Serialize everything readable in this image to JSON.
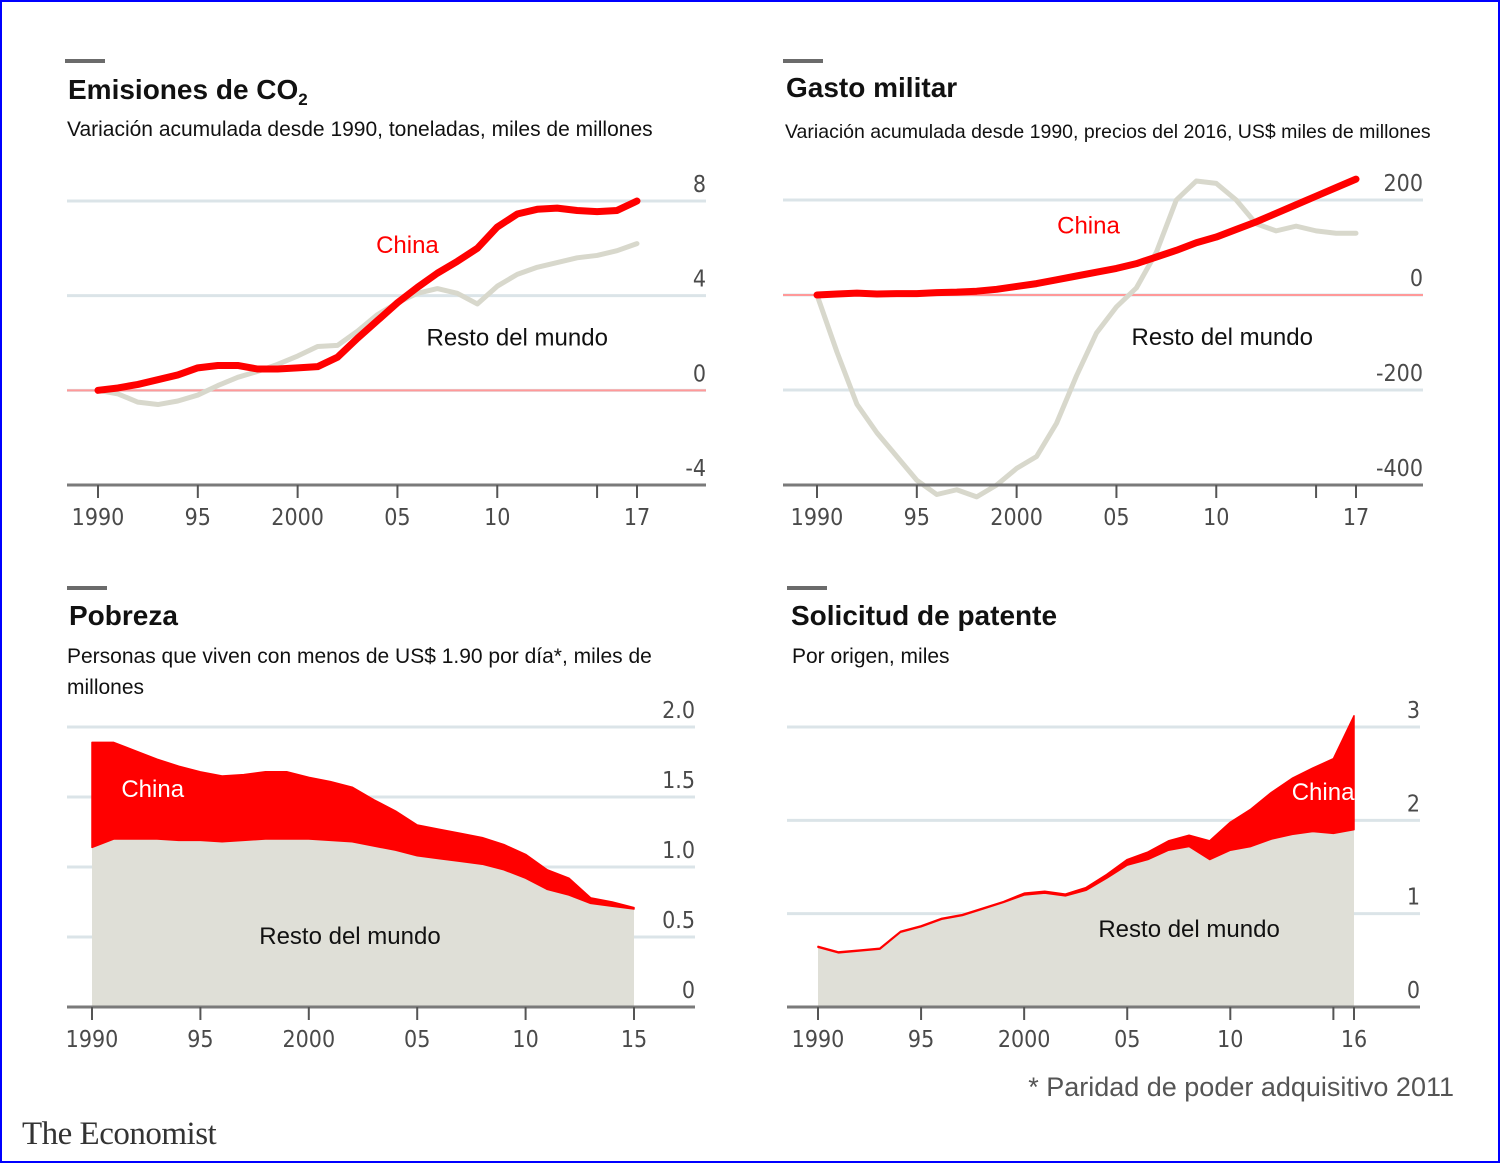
{
  "colors": {
    "china": "#ff0000",
    "rest": "#d8d8cc",
    "rest_area": "#dfdfd7",
    "grid": "#dbe4e8",
    "zero_line": "#ff9999",
    "axis": "#7a7a7a",
    "frame": "#0000ff"
  },
  "footer": {
    "footnote": "* Paridad de poder adquisitivo 2011",
    "brand": "The Economist"
  },
  "chart_data": [
    {
      "id": "co2",
      "type": "line",
      "title": "Emisiones de CO",
      "title_sub": "2",
      "subtitle": "Variación acumulada desde 1990, toneladas, miles de millones",
      "xlabel": "",
      "ylabel": "",
      "x_range": [
        1990,
        2017
      ],
      "ylim": [
        -4,
        8
      ],
      "y_ticks": [
        8,
        4,
        0,
        -4
      ],
      "y_tick_labels": [
        "8",
        "4",
        "0",
        "-4"
      ],
      "x_ticks": [
        1990,
        1995,
        2000,
        2005,
        2010,
        2015,
        2017
      ],
      "x_tick_labels": [
        "1990",
        "95",
        "2000",
        "05",
        "10",
        "",
        "17"
      ],
      "grid": true,
      "zero_line": 0,
      "x": [
        1990,
        1991,
        1992,
        1993,
        1994,
        1995,
        1996,
        1997,
        1998,
        1999,
        2000,
        2001,
        2002,
        2003,
        2004,
        2005,
        2006,
        2007,
        2008,
        2009,
        2010,
        2011,
        2012,
        2013,
        2014,
        2015,
        2016,
        2017
      ],
      "series": [
        {
          "name": "Resto del mundo",
          "key": "rest",
          "values": [
            0,
            -0.15,
            -0.5,
            -0.6,
            -0.45,
            -0.2,
            0.2,
            0.55,
            0.8,
            1.1,
            1.45,
            1.85,
            1.9,
            2.5,
            3.2,
            3.7,
            4.1,
            4.3,
            4.1,
            3.65,
            4.4,
            4.9,
            5.2,
            5.4,
            5.6,
            5.7,
            5.9,
            6.2
          ]
        },
        {
          "name": "China",
          "key": "china",
          "values": [
            0,
            0.1,
            0.25,
            0.45,
            0.65,
            0.95,
            1.05,
            1.05,
            0.9,
            0.9,
            0.95,
            1.0,
            1.4,
            2.2,
            2.95,
            3.7,
            4.35,
            4.95,
            5.45,
            6.0,
            6.9,
            7.45,
            7.65,
            7.7,
            7.6,
            7.55,
            7.6,
            8.0
          ]
        }
      ],
      "labels": [
        {
          "text": "China",
          "key": "china",
          "x": 2005.5,
          "y": 5.8
        },
        {
          "text": "Resto del mundo",
          "key": "black",
          "x": 2011,
          "y": 1.9
        }
      ]
    },
    {
      "id": "military",
      "type": "line",
      "title": "Gasto militar",
      "subtitle": "Variación acumulada desde 1990, precios del 2016, US$ miles de millones",
      "xlabel": "",
      "ylabel": "",
      "x_range": [
        1990,
        2017
      ],
      "ylim": [
        -400,
        200
      ],
      "y_ticks": [
        200,
        0,
        -200,
        -400
      ],
      "y_tick_labels": [
        "200",
        "0",
        "-200",
        "-400"
      ],
      "x_ticks": [
        1990,
        1995,
        2000,
        2005,
        2010,
        2015,
        2017
      ],
      "x_tick_labels": [
        "1990",
        "95",
        "2000",
        "05",
        "10",
        "",
        "17"
      ],
      "grid": true,
      "zero_line": 0,
      "x": [
        1990,
        1991,
        1992,
        1993,
        1994,
        1995,
        1996,
        1997,
        1998,
        1999,
        2000,
        2001,
        2002,
        2003,
        2004,
        2005,
        2006,
        2007,
        2008,
        2009,
        2010,
        2011,
        2012,
        2013,
        2014,
        2015,
        2016,
        2017
      ],
      "series": [
        {
          "name": "Resto del mundo",
          "key": "rest",
          "values": [
            0,
            -120,
            -230,
            -290,
            -340,
            -390,
            -420,
            -410,
            -425,
            -400,
            -365,
            -340,
            -270,
            -170,
            -80,
            -25,
            15,
            90,
            200,
            240,
            235,
            200,
            150,
            135,
            145,
            135,
            130,
            130
          ]
        },
        {
          "name": "China",
          "key": "china",
          "values": [
            0,
            2,
            4,
            2,
            3,
            3,
            5,
            6,
            8,
            12,
            18,
            24,
            32,
            40,
            48,
            56,
            66,
            80,
            94,
            110,
            122,
            138,
            154,
            172,
            190,
            208,
            226,
            244
          ]
        }
      ],
      "labels": [
        {
          "text": "China",
          "key": "china",
          "x": 2003.6,
          "y": 130
        },
        {
          "text": "Resto del mundo",
          "key": "black",
          "x": 2010.3,
          "y": -105
        }
      ]
    },
    {
      "id": "poverty",
      "type": "area",
      "stacked": true,
      "title": "Pobreza",
      "subtitle": "Personas que viven con menos de US$ 1.90 por día*, miles de millones",
      "xlabel": "",
      "ylabel": "",
      "x_range": [
        1990,
        2015
      ],
      "ylim": [
        0,
        2.0
      ],
      "y_ticks": [
        2.0,
        1.5,
        1.0,
        0.5,
        0
      ],
      "y_tick_labels": [
        "2.0",
        "1.5",
        "1.0",
        "0.5",
        "0"
      ],
      "x_ticks": [
        1990,
        1995,
        2000,
        2005,
        2010,
        2015
      ],
      "x_tick_labels": [
        "1990",
        "95",
        "2000",
        "05",
        "10",
        "15"
      ],
      "grid": true,
      "x": [
        1990,
        1991,
        1992,
        1993,
        1994,
        1995,
        1996,
        1997,
        1998,
        1999,
        2000,
        2001,
        2002,
        2003,
        2004,
        2005,
        2006,
        2007,
        2008,
        2009,
        2010,
        2011,
        2012,
        2013,
        2014,
        2015
      ],
      "series": [
        {
          "name": "Resto del mundo",
          "key": "rest",
          "values": [
            1.14,
            1.2,
            1.2,
            1.2,
            1.19,
            1.19,
            1.18,
            1.19,
            1.2,
            1.2,
            1.2,
            1.19,
            1.18,
            1.15,
            1.12,
            1.08,
            1.06,
            1.04,
            1.02,
            0.98,
            0.92,
            0.84,
            0.8,
            0.74,
            0.72,
            0.7
          ]
        },
        {
          "name": "China",
          "key": "china",
          "values": [
            0.75,
            0.69,
            0.63,
            0.57,
            0.53,
            0.49,
            0.47,
            0.47,
            0.48,
            0.48,
            0.44,
            0.42,
            0.39,
            0.33,
            0.28,
            0.22,
            0.21,
            0.2,
            0.19,
            0.18,
            0.17,
            0.14,
            0.12,
            0.04,
            0.03,
            0.01
          ]
        }
      ],
      "labels": [
        {
          "text": "China",
          "key": "white",
          "x": 1992.8,
          "y": 1.5
        },
        {
          "text": "Resto del mundo",
          "key": "black",
          "x": 2001.9,
          "y": 0.45
        }
      ]
    },
    {
      "id": "patents",
      "type": "area",
      "stacked": true,
      "title": "Solicitud de patente",
      "subtitle": "Por origen, miles",
      "xlabel": "",
      "ylabel": "",
      "x_range": [
        1990,
        2016
      ],
      "ylim": [
        0,
        3
      ],
      "y_ticks": [
        3,
        2,
        1,
        0
      ],
      "y_tick_labels": [
        "3",
        "2",
        "1",
        "0"
      ],
      "x_ticks": [
        1990,
        1995,
        2000,
        2005,
        2010,
        2015,
        2016
      ],
      "x_tick_labels": [
        "1990",
        "95",
        "2000",
        "05",
        "10",
        "",
        "16"
      ],
      "grid": true,
      "x": [
        1990,
        1991,
        1992,
        1993,
        1994,
        1995,
        1996,
        1997,
        1998,
        1999,
        2000,
        2001,
        2002,
        2003,
        2004,
        2005,
        2006,
        2007,
        2008,
        2009,
        2010,
        2011,
        2012,
        2013,
        2014,
        2015,
        2016
      ],
      "series": [
        {
          "name": "Resto del mundo",
          "key": "rest",
          "values": [
            0.64,
            0.58,
            0.6,
            0.62,
            0.8,
            0.86,
            0.94,
            0.98,
            1.05,
            1.12,
            1.2,
            1.22,
            1.19,
            1.25,
            1.38,
            1.52,
            1.58,
            1.68,
            1.72,
            1.58,
            1.68,
            1.72,
            1.8,
            1.85,
            1.88,
            1.86,
            1.9
          ]
        },
        {
          "name": "China",
          "key": "china",
          "values": [
            0.01,
            0.01,
            0.01,
            0.01,
            0.01,
            0.01,
            0.01,
            0.01,
            0.01,
            0.01,
            0.02,
            0.02,
            0.02,
            0.03,
            0.04,
            0.06,
            0.08,
            0.1,
            0.12,
            0.2,
            0.3,
            0.4,
            0.5,
            0.6,
            0.68,
            0.8,
            1.22
          ]
        }
      ],
      "labels": [
        {
          "text": "China",
          "key": "white",
          "x": 2014.5,
          "y": 2.22
        },
        {
          "text": "Resto del mundo",
          "key": "black",
          "x": 2008,
          "y": 0.75
        }
      ]
    }
  ]
}
